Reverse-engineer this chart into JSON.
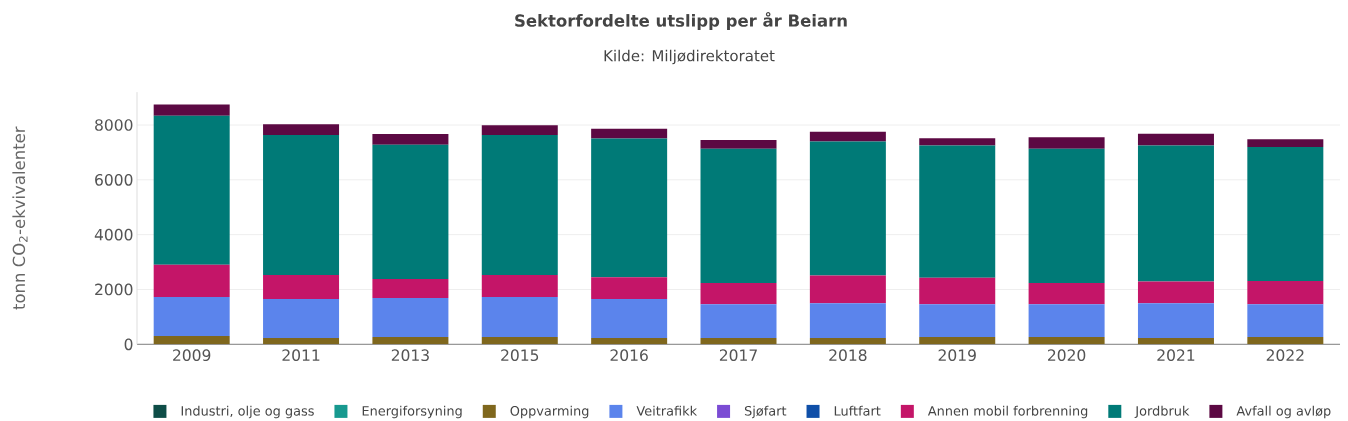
{
  "chart_data": {
    "type": "bar",
    "stacked": true,
    "title": "Sektorfordelte utslipp per år Beiarn",
    "subtitle": "Kilde: Miljødirektoratet",
    "ylabel": "tonn CO$_{2}$-ekvivalenter",
    "categories": [
      "2009",
      "2011",
      "2013",
      "2015",
      "2016",
      "2017",
      "2018",
      "2019",
      "2020",
      "2021",
      "2022"
    ],
    "ylim": [
      0,
      9200
    ],
    "yticks": [
      0,
      2000,
      4000,
      6000,
      8000
    ],
    "grid": "y",
    "legend": "bottom",
    "series": [
      {
        "name": "Industri, olje og gass",
        "color": "#0e4d47",
        "values": [
          null,
          null,
          null,
          null,
          null,
          null,
          null,
          null,
          null,
          null,
          null
        ]
      },
      {
        "name": "Energiforsyning",
        "color": "#17998f",
        "values": [
          null,
          null,
          null,
          null,
          null,
          null,
          null,
          null,
          null,
          null,
          null
        ]
      },
      {
        "name": "Oppvarming",
        "color": "#7f671d",
        "values": [
          300,
          230,
          270,
          270,
          230,
          230,
          230,
          270,
          270,
          230,
          270
        ]
      },
      {
        "name": "Veitrafikk",
        "color": "#5b84ec",
        "values": [
          1430,
          1420,
          1420,
          1460,
          1420,
          1230,
          1270,
          1190,
          1190,
          1270,
          1190
        ]
      },
      {
        "name": "Sjøfart",
        "color": "#7b4cd4",
        "values": [
          null,
          null,
          null,
          null,
          null,
          null,
          null,
          null,
          null,
          null,
          null
        ]
      },
      {
        "name": "Luftfart",
        "color": "#0f4fa8",
        "values": [
          null,
          null,
          null,
          null,
          null,
          null,
          null,
          null,
          null,
          null,
          null
        ]
      },
      {
        "name": "Annen mobil forbrenning",
        "color": "#c41568",
        "values": [
          1170,
          880,
          690,
          800,
          800,
          780,
          1010,
          970,
          780,
          790,
          850
        ]
      },
      {
        "name": "Jordbruk",
        "color": "#007a77",
        "values": [
          5440,
          5110,
          4900,
          5110,
          5060,
          4890,
          4890,
          4820,
          4890,
          4960,
          4890
        ]
      },
      {
        "name": "Avfall og avløp",
        "color": "#5c0943",
        "values": [
          410,
          390,
          390,
          350,
          350,
          320,
          350,
          270,
          420,
          430,
          280
        ]
      }
    ]
  }
}
